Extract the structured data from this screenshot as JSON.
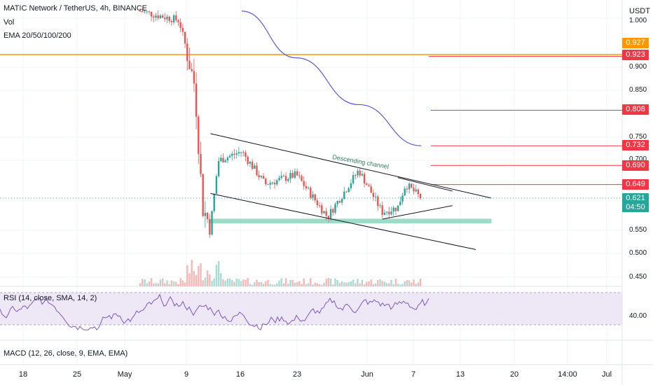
{
  "header": {
    "symbol_line": "MATIC Network / TetherUS, 4h, BINANCE",
    "volume_label": "Vol",
    "ema_label": "EMA 20/50/100/200",
    "rsi_label": "RSI (14, close, SMA, 14, 2)",
    "macd_label": "MACD (12, 26, close, 9, EMA, EMA)"
  },
  "axis": {
    "unit": "USDT",
    "price_ticks": [
      "1.000",
      "0.900",
      "0.850",
      "0.750",
      "0.700",
      "0.550",
      "0.500",
      "0.450"
    ],
    "rsi_tick": "40.00",
    "time_ticks": [
      "18",
      "25",
      "May",
      "9",
      "16",
      "23",
      "Jun",
      "7",
      "13",
      "20",
      "14:00",
      "Jul"
    ]
  },
  "price_tags": [
    {
      "label": "0.927",
      "color": "#ff9800"
    },
    {
      "label": "0.923",
      "color": "#f23645"
    },
    {
      "label": "0.808",
      "color": "#f23645"
    },
    {
      "label": "0.732",
      "color": "#f23645"
    },
    {
      "label": "0.690",
      "color": "#f23645"
    },
    {
      "label": "0.649",
      "color": "#f23645"
    },
    {
      "label": "0.621",
      "color": "#26a69a"
    }
  ],
  "countdown": "04:50",
  "annotation": "Descending channel",
  "colors": {
    "up": "#26a69a",
    "down": "#ef5350",
    "ema": "#5b5bd6",
    "rsi": "#7e57c2",
    "resistance": "#f23645",
    "orange": "#ff9800",
    "support_zone": "#9fdcc8"
  },
  "chart_data": {
    "type": "candlestick",
    "symbol": "MATIC/USDT",
    "interval": "4h",
    "exchange": "BINANCE",
    "last_price": 0.621,
    "resistance_levels": [
      0.923,
      0.808,
      0.732,
      0.69,
      0.649
    ],
    "orange_level": 0.927,
    "support_zone": [
      0.566,
      0.576
    ],
    "ohlc_segments": [
      {
        "date": "May 3",
        "price": 1.02
      },
      {
        "date": "May 8",
        "price": 1.0
      },
      {
        "date": "May 10",
        "price": 0.86
      },
      {
        "date": "May 11",
        "price": 0.6
      },
      {
        "date": "May 12",
        "price": 0.56
      },
      {
        "date": "May 13",
        "price": 0.7
      },
      {
        "date": "May 16",
        "price": 0.72
      },
      {
        "date": "May 19",
        "price": 0.65
      },
      {
        "date": "May 23",
        "price": 0.67
      },
      {
        "date": "May 27",
        "price": 0.58
      },
      {
        "date": "May 31",
        "price": 0.68
      },
      {
        "date": "Jun 3",
        "price": 0.59
      },
      {
        "date": "Jun 5",
        "price": 0.6
      },
      {
        "date": "Jun 6",
        "price": 0.65
      },
      {
        "date": "Jun 8",
        "price": 0.62
      }
    ],
    "ema_200": [
      {
        "date": "May 16",
        "price": 1.02
      },
      {
        "date": "May 23",
        "price": 0.92
      },
      {
        "date": "May 31",
        "price": 0.82
      },
      {
        "date": "Jun 8",
        "price": 0.732
      }
    ],
    "channel": {
      "upper": [
        {
          "date": "May 12",
          "price": 0.758
        },
        {
          "date": "Jun 17",
          "price": 0.62
        }
      ],
      "lower": [
        {
          "date": "May 12",
          "price": 0.63
        },
        {
          "date": "Jun 15",
          "price": 0.51
        }
      ],
      "triangle_upper": [
        {
          "date": "Jun 5",
          "price": 0.664
        },
        {
          "date": "Jun 12",
          "price": 0.635
        }
      ],
      "triangle_lower": [
        {
          "date": "Jun 3",
          "price": 0.575
        },
        {
          "date": "Jun 12",
          "price": 0.604
        }
      ]
    },
    "rsi_range": [
      25,
      75
    ],
    "rsi_level_shown": 40
  }
}
